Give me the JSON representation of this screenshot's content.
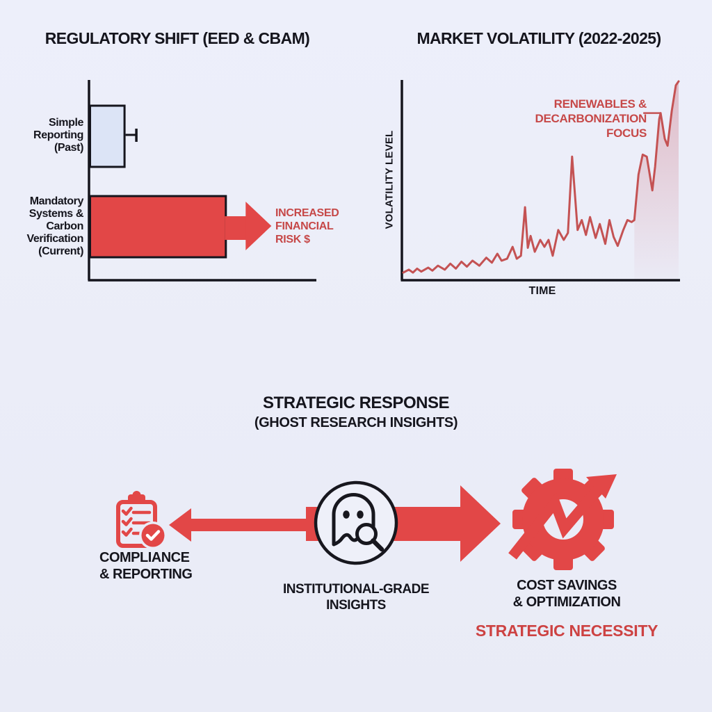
{
  "colors": {
    "ink": "#15151d",
    "shape_red": "#e24747",
    "text_red": "#c64848",
    "line_red": "#c45253",
    "bar_blue": "#dce4f6",
    "background": "#eaecf7"
  },
  "chart_data": [
    {
      "type": "bar",
      "orientation": "horizontal",
      "title": "REGULATORY SHIFT (EED & CBAM)",
      "categories": [
        "Simple Reporting (Past)",
        "Mandatory Systems & Carbon Verification (Current)"
      ],
      "category_label_lines": [
        [
          "Simple",
          "Reporting",
          "(Past)"
        ],
        [
          "Mandatory",
          "Systems &",
          "Carbon",
          "Verification",
          "(Current)"
        ]
      ],
      "values": [
        16,
        63
      ],
      "error_bars": [
        5,
        0
      ],
      "bar_colors": [
        "#dce4f6",
        "#e24747"
      ],
      "xlim": [
        0,
        100
      ],
      "grid": false,
      "trailing_arrow_on_category": "Mandatory Systems & Carbon Verification (Current)",
      "annotation": "INCREASED FINANCIAL RISK $",
      "annotation_lines": [
        "INCREASED",
        "FINANCIAL",
        "RISK $"
      ]
    },
    {
      "type": "line",
      "title": "MARKET VOLATILITY (2022-2025)",
      "xlabel": "TIME",
      "ylabel": "VOLATILITY LEVEL",
      "x_range": "2022-2025",
      "grid": false,
      "line_color": "#c45253",
      "trend": "rising volatility with increasing spikes toward present",
      "annotation": "RENEWABLES & DECARBONIZATION FOCUS",
      "annotation_lines": [
        "RENEWABLES &",
        "DECARBONIZATION",
        "FOCUS"
      ],
      "points": [
        [
          0,
          3.5
        ],
        [
          2,
          5
        ],
        [
          3.5,
          3.5
        ],
        [
          5,
          5.5
        ],
        [
          6.5,
          4
        ],
        [
          9,
          6
        ],
        [
          10.5,
          4.5
        ],
        [
          12.5,
          7
        ],
        [
          15,
          5
        ],
        [
          17,
          8
        ],
        [
          19,
          5.5
        ],
        [
          21,
          9
        ],
        [
          23,
          6.5
        ],
        [
          25,
          9.5
        ],
        [
          27.5,
          7
        ],
        [
          30,
          11
        ],
        [
          32,
          8.5
        ],
        [
          34,
          13
        ],
        [
          35.5,
          9.5
        ],
        [
          37.5,
          10.5
        ],
        [
          39.5,
          16.5
        ],
        [
          41,
          10.5
        ],
        [
          42.5,
          12
        ],
        [
          44,
          36.5
        ],
        [
          45,
          16
        ],
        [
          46,
          22
        ],
        [
          47.5,
          14
        ],
        [
          49.5,
          20
        ],
        [
          51,
          16.5
        ],
        [
          52.5,
          20
        ],
        [
          54,
          12
        ],
        [
          56,
          25
        ],
        [
          58,
          20
        ],
        [
          59.5,
          23.5
        ],
        [
          61,
          62
        ],
        [
          63,
          25
        ],
        [
          64.5,
          30
        ],
        [
          66,
          22.5
        ],
        [
          67.5,
          31.5
        ],
        [
          69.5,
          21
        ],
        [
          71,
          28
        ],
        [
          73,
          18
        ],
        [
          74.5,
          30
        ],
        [
          76,
          21.5
        ],
        [
          77.5,
          17
        ],
        [
          79.5,
          25
        ],
        [
          81,
          30
        ],
        [
          82.5,
          29
        ],
        [
          83.5,
          30
        ],
        [
          85,
          53
        ],
        [
          86.5,
          63
        ],
        [
          88,
          62
        ],
        [
          90,
          45
        ],
        [
          91,
          57
        ],
        [
          92.5,
          81
        ],
        [
          93,
          84
        ],
        [
          94.5,
          71
        ],
        [
          95.5,
          67.5
        ],
        [
          97,
          85
        ],
        [
          98.5,
          98
        ],
        [
          99.5,
          100
        ]
      ],
      "fill_from_t": 83,
      "callout_attaches_at": [
        93,
        84
      ]
    }
  ],
  "flow": {
    "title": "STRATEGIC RESPONSE",
    "subtitle": "(GHOST RESEARCH INSIGHTS)",
    "nodes": [
      {
        "id": "compliance",
        "icon": "clipboard-checklist-icon",
        "label": "COMPLIANCE & REPORTING",
        "label_lines": [
          "COMPLIANCE",
          "& REPORTING"
        ]
      },
      {
        "id": "insights",
        "icon": "ghost-magnifier-icon",
        "label": "INSTITUTIONAL-GRADE INSIGHTS",
        "label_lines": [
          "INSTITUTIONAL-GRADE",
          "INSIGHTS"
        ]
      },
      {
        "id": "optimization",
        "icon": "gear-growth-arrow-icon",
        "label": "COST SAVINGS & OPTIMIZATION",
        "label_lines": [
          "COST SAVINGS",
          "& OPTIMIZATION"
        ]
      }
    ],
    "footer": "STRATEGIC NECESSITY"
  }
}
